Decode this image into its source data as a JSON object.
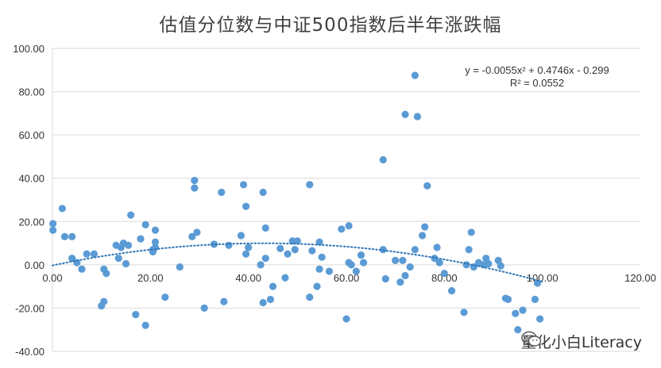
{
  "chart_data": {
    "type": "scatter",
    "title": "估值分位数与中证500指数后半年涨跌幅",
    "xlim": [
      0,
      120
    ],
    "ylim": [
      -40,
      100
    ],
    "x_ticks": [
      "0.00",
      "20.00",
      "40.00",
      "60.00",
      "80.00",
      "100.00",
      "120.00"
    ],
    "y_ticks": [
      "100.00",
      "80.00",
      "60.00",
      "40.00",
      "20.00",
      "0.00",
      "-20.00",
      "-40.00"
    ],
    "grid": "horizontal",
    "trendline": {
      "type": "polynomial",
      "coefficients": [
        -0.299,
        0.4746,
        -0.0055
      ],
      "x_range": [
        0,
        100
      ],
      "style": "dotted"
    },
    "equation_line1": "y = -0.0055x² + 0.4746x - 0.299",
    "equation_line2": "R² = 0.0552",
    "colors": {
      "marker": "#5b9bd5",
      "trend": "#2e75b6",
      "grid": "#d9d9d9",
      "title": "#404040"
    },
    "points": [
      [
        0.1,
        19
      ],
      [
        0.1,
        16
      ],
      [
        2,
        26
      ],
      [
        2.5,
        13
      ],
      [
        4,
        13
      ],
      [
        4,
        3
      ],
      [
        5,
        1
      ],
      [
        6,
        -2
      ],
      [
        7,
        5
      ],
      [
        8.5,
        5
      ],
      [
        10,
        -19
      ],
      [
        10.5,
        -17
      ],
      [
        10.5,
        -2
      ],
      [
        11,
        -4
      ],
      [
        13,
        9
      ],
      [
        13.5,
        3
      ],
      [
        14,
        8
      ],
      [
        14.5,
        10
      ],
      [
        15,
        0.5
      ],
      [
        15.5,
        9
      ],
      [
        16,
        23
      ],
      [
        17,
        -23
      ],
      [
        18,
        12
      ],
      [
        19,
        -28
      ],
      [
        19,
        18.5
      ],
      [
        20.5,
        7
      ],
      [
        20.5,
        6
      ],
      [
        21,
        10.5
      ],
      [
        21,
        16
      ],
      [
        21,
        8
      ],
      [
        23,
        -15
      ],
      [
        26,
        -1
      ],
      [
        28.5,
        13
      ],
      [
        29,
        39
      ],
      [
        29,
        35.5
      ],
      [
        29.5,
        15
      ],
      [
        31,
        -20
      ],
      [
        33,
        9.5
      ],
      [
        34.5,
        33.5
      ],
      [
        35,
        -17
      ],
      [
        36,
        9
      ],
      [
        38.5,
        13.5
      ],
      [
        39,
        37
      ],
      [
        39.5,
        5
      ],
      [
        39.5,
        27
      ],
      [
        40,
        8
      ],
      [
        42.5,
        0
      ],
      [
        43,
        33.5
      ],
      [
        43,
        -17.5
      ],
      [
        43.5,
        17
      ],
      [
        43.5,
        3
      ],
      [
        44.5,
        -16
      ],
      [
        45,
        -10
      ],
      [
        46.5,
        7.5
      ],
      [
        47.5,
        -6
      ],
      [
        48,
        5
      ],
      [
        49,
        11
      ],
      [
        49.5,
        7
      ],
      [
        50,
        11
      ],
      [
        52.5,
        37
      ],
      [
        52.5,
        -15
      ],
      [
        53,
        6.5
      ],
      [
        54,
        -10
      ],
      [
        54.5,
        10.5
      ],
      [
        54.5,
        -2
      ],
      [
        55,
        3.5
      ],
      [
        56.5,
        -3
      ],
      [
        59,
        16.5
      ],
      [
        60,
        -25
      ],
      [
        60.5,
        18
      ],
      [
        60.5,
        1
      ],
      [
        61,
        0
      ],
      [
        62,
        -3
      ],
      [
        63,
        4.5
      ],
      [
        63.5,
        1
      ],
      [
        67.5,
        48.5
      ],
      [
        67.5,
        7
      ],
      [
        68,
        -6.5
      ],
      [
        70,
        2
      ],
      [
        71,
        -8
      ],
      [
        71.5,
        2
      ],
      [
        72,
        69.5
      ],
      [
        72,
        -5
      ],
      [
        73,
        -1
      ],
      [
        74,
        7
      ],
      [
        74,
        87.5
      ],
      [
        74.5,
        68.5
      ],
      [
        75.5,
        13.5
      ],
      [
        76,
        17.5
      ],
      [
        76.5,
        36.5
      ],
      [
        78,
        3
      ],
      [
        78.5,
        8
      ],
      [
        79,
        1
      ],
      [
        80,
        -4
      ],
      [
        81.5,
        -12
      ],
      [
        84,
        -22
      ],
      [
        84.5,
        0
      ],
      [
        85,
        7
      ],
      [
        85.5,
        15
      ],
      [
        86,
        -1
      ],
      [
        87,
        1
      ],
      [
        88,
        0
      ],
      [
        88.5,
        3
      ],
      [
        89,
        0.5
      ],
      [
        91,
        2
      ],
      [
        91.5,
        -0.5
      ],
      [
        92.5,
        -15.5
      ],
      [
        93,
        -16
      ],
      [
        94.5,
        -22.5
      ],
      [
        95,
        -30
      ],
      [
        96,
        -21
      ],
      [
        98.5,
        -16
      ],
      [
        99,
        -8.5
      ],
      [
        99.5,
        -25
      ]
    ]
  },
  "watermark": {
    "text": "量化小白Literacy",
    "icon": "wechat-icon"
  }
}
